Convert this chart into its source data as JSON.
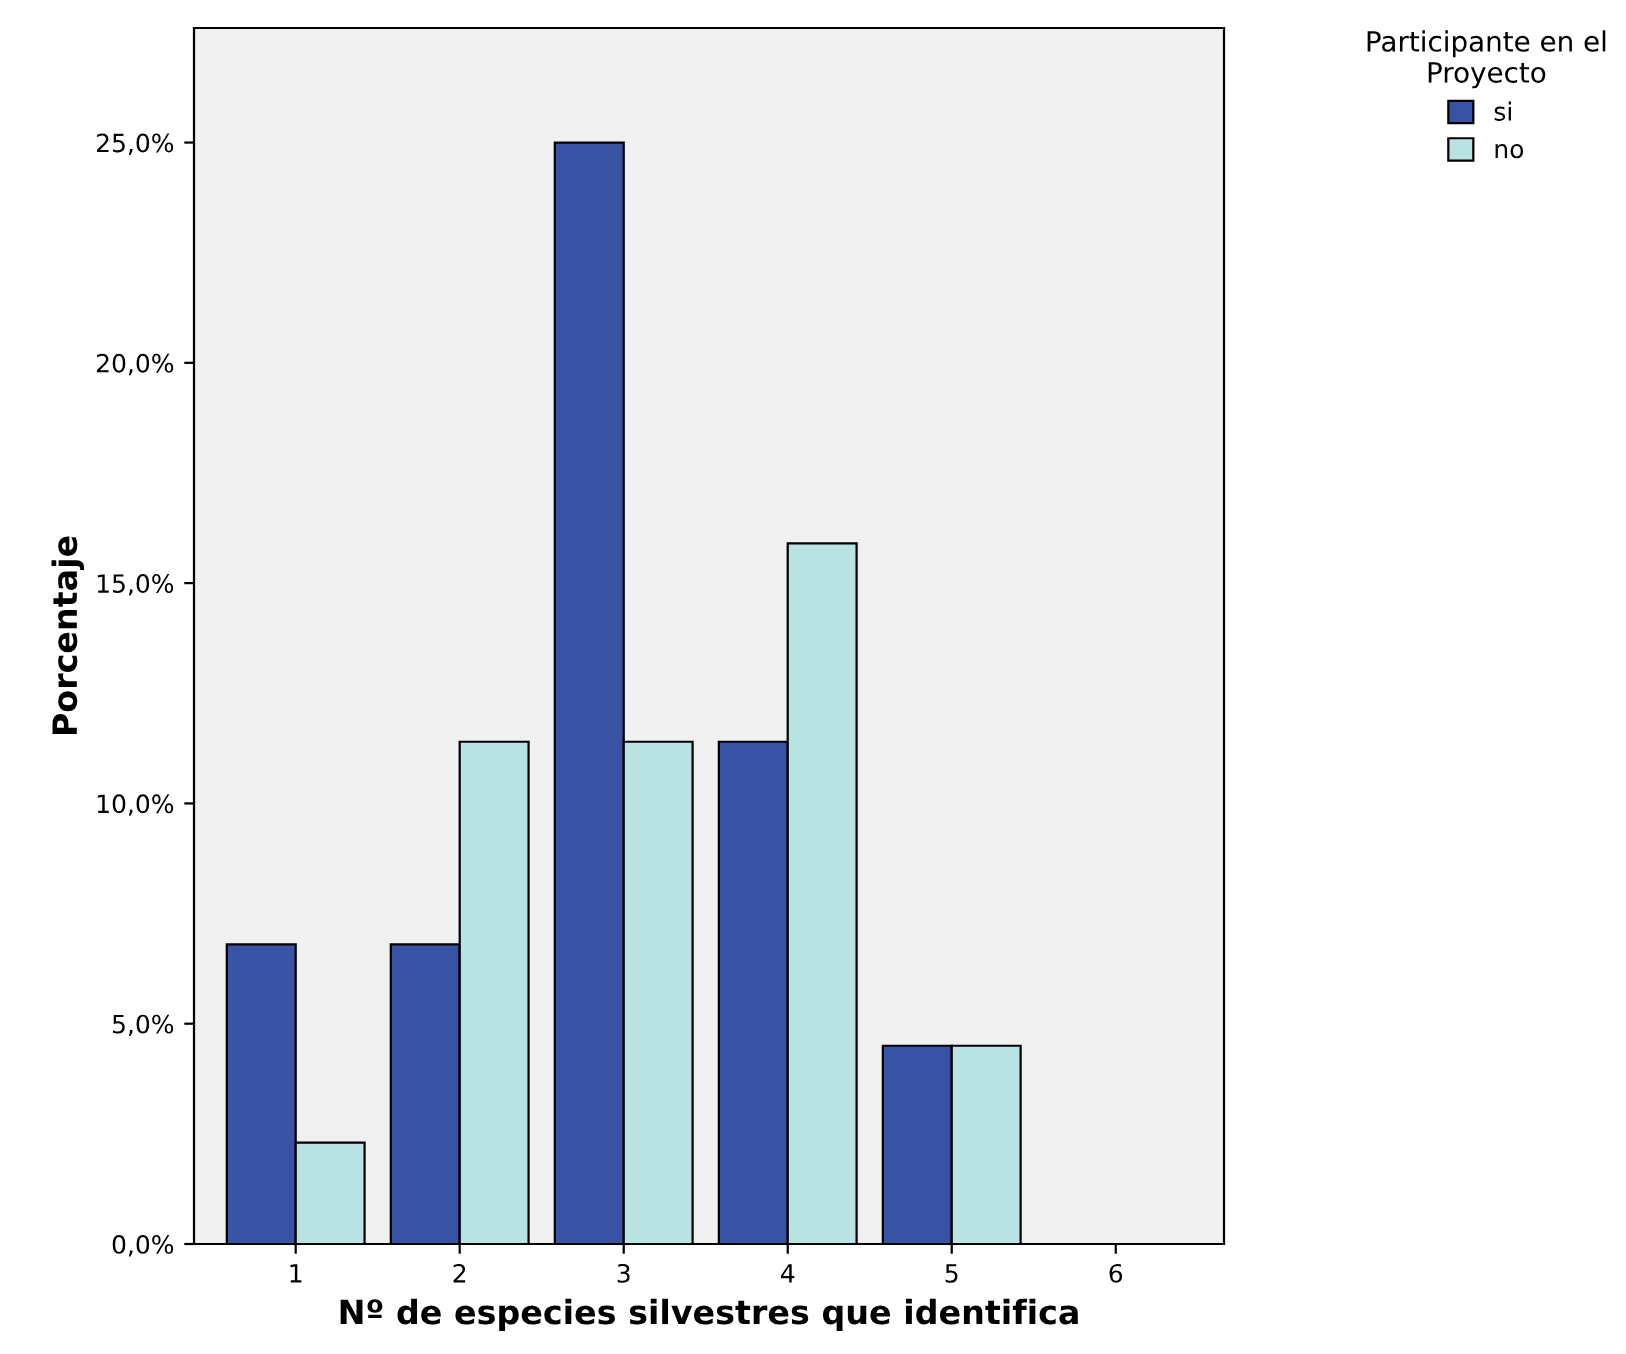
{
  "chart_data": {
    "type": "bar",
    "xlabel": "Nº de especies silvestres que identifica",
    "ylabel": "Porcentaje",
    "legend_title": "Participante en el\nProyecto",
    "categories": [
      "1",
      "2",
      "3",
      "4",
      "5",
      "6"
    ],
    "series": [
      {
        "name": "si",
        "color": "#3953a4",
        "values": [
          6.8,
          6.8,
          25.0,
          11.4,
          4.5,
          null
        ]
      },
      {
        "name": "no",
        "color": "#b9e3e3",
        "values": [
          2.3,
          11.4,
          11.4,
          15.9,
          4.5,
          null
        ]
      }
    ],
    "ylim": [
      0,
      27.6
    ],
    "yticks": [
      {
        "value": 0,
        "label": "0,0%"
      },
      {
        "value": 5,
        "label": "5,0%"
      },
      {
        "value": 10,
        "label": "10,0%"
      },
      {
        "value": 15,
        "label": "15,0%"
      },
      {
        "value": 20,
        "label": "20,0%"
      },
      {
        "value": 25,
        "label": "25,0%"
      }
    ],
    "grid": false,
    "legend": "top right"
  }
}
